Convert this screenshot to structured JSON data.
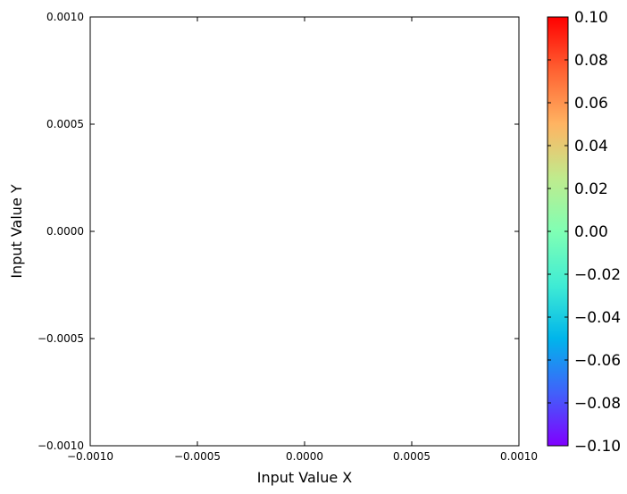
{
  "chart_data": {
    "type": "heatmap",
    "title": "",
    "xlabel": "Input Value X",
    "ylabel": "Input Value Y",
    "xlim": [
      -0.001,
      0.001
    ],
    "ylim": [
      -0.001,
      0.001
    ],
    "x_ticks": [
      "−0.0010",
      "−0.0005",
      "0.0000",
      "0.0005",
      "0.0010"
    ],
    "y_ticks": [
      "−0.0010",
      "−0.0005",
      "0.0000",
      "0.0005",
      "0.0010"
    ],
    "grid": false,
    "points": [],
    "colorbar": {
      "colormap": "rainbow",
      "range": [
        -0.1,
        0.1
      ],
      "ticks": [
        "−0.10",
        "−0.08",
        "−0.06",
        "−0.04",
        "−0.02",
        "0.00",
        "0.02",
        "0.04",
        "0.06",
        "0.08",
        "0.10"
      ],
      "colors": [
        "#8000ff",
        "#4062fa",
        "#00b5eb",
        "#40ecd4",
        "#80ffb4",
        "#c0eb8d",
        "#ffb462",
        "#ff6232",
        "#ff0000"
      ]
    }
  }
}
